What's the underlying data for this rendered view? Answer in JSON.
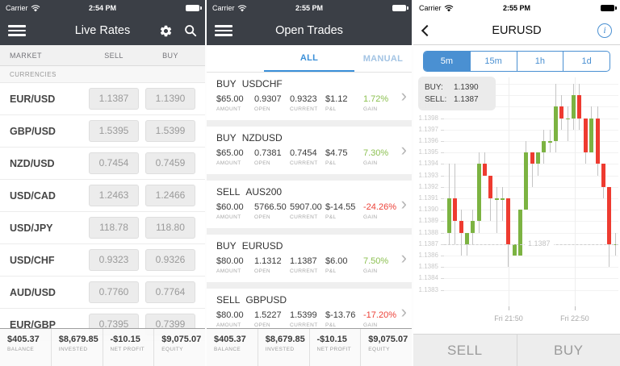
{
  "icons": {
    "chevron_right": "›"
  },
  "colors": {
    "gain": "#8cc051",
    "loss": "#ec4138",
    "accent_blue": "#4a90d2",
    "nav_dark": "#3b3f46"
  },
  "account": {
    "stats": [
      {
        "value": "$405.37",
        "label": "BALANCE"
      },
      {
        "value": "$8,679.85",
        "label": "INVESTED"
      },
      {
        "value": "-$10.15",
        "label": "NET PROFIT"
      },
      {
        "value": "$9,075.07",
        "label": "EQUITY"
      }
    ]
  },
  "live_rates": {
    "carrier": "Carrier",
    "status_time": "2:54 PM",
    "title": "Live Rates",
    "header": {
      "market": "MARKET",
      "sell": "SELL",
      "buy": "BUY"
    },
    "section": "CURRENCIES",
    "rows": [
      {
        "pair": "EUR/USD",
        "sell": "1.1387",
        "buy": "1.1390"
      },
      {
        "pair": "GBP/USD",
        "sell": "1.5395",
        "buy": "1.5399"
      },
      {
        "pair": "NZD/USD",
        "sell": "0.7454",
        "buy": "0.7459"
      },
      {
        "pair": "USD/CAD",
        "sell": "1.2463",
        "buy": "1.2466"
      },
      {
        "pair": "USD/JPY",
        "sell": "118.78",
        "buy": "118.80"
      },
      {
        "pair": "USD/CHF",
        "sell": "0.9323",
        "buy": "0.9326"
      },
      {
        "pair": "AUD/USD",
        "sell": "0.7760",
        "buy": "0.7764"
      },
      {
        "pair": "EUR/GBP",
        "sell": "0.7395",
        "buy": "0.7399"
      }
    ]
  },
  "open_trades": {
    "carrier": "Carrier",
    "status_time": "2:55 PM",
    "title": "Open Trades",
    "tabs": {
      "all": "ALL",
      "manual": "MANUAL"
    },
    "col_labels": {
      "amount": "AMOUNT",
      "open": "OPEN",
      "current": "CURRENT",
      "pl": "P&L",
      "gain": "GAIN"
    },
    "trades": [
      {
        "side": "BUY",
        "symbol": "USDCHF",
        "amount": "$65.00",
        "open": "0.9307",
        "current": "0.9323",
        "pl": "$1.12",
        "gain": "1.72%"
      },
      {
        "side": "BUY",
        "symbol": "NZDUSD",
        "amount": "$65.00",
        "open": "0.7381",
        "current": "0.7454",
        "pl": "$4.75",
        "gain": "7.30%"
      },
      {
        "side": "SELL",
        "symbol": "AUS200",
        "amount": "$60.00",
        "open": "5766.50",
        "current": "5907.00",
        "pl": "$-14.55",
        "gain": "-24.26%"
      },
      {
        "side": "BUY",
        "symbol": "EURUSD",
        "amount": "$80.00",
        "open": "1.1312",
        "current": "1.1387",
        "pl": "$6.00",
        "gain": "7.50%"
      },
      {
        "side": "SELL",
        "symbol": "GBPUSD",
        "amount": "$80.00",
        "open": "1.5227",
        "current": "1.5399",
        "pl": "$-13.76",
        "gain": "-17.20%"
      }
    ]
  },
  "chart_screen": {
    "carrier": "Carrier",
    "status_time": "2:55 PM",
    "title": "EURUSD",
    "timeframes": [
      "5m",
      "15m",
      "1h",
      "1d"
    ],
    "selected_timeframe": "5m",
    "tooltip": {
      "buy_label": "BUY:",
      "buy_value": "1.1390",
      "sell_label": "SELL:",
      "sell_value": "1.1387"
    },
    "sell_button": "SELL",
    "buy_button": "BUY",
    "chart_data": {
      "type": "candlestick",
      "title": "EURUSD 5m",
      "ylim": [
        1.1383,
        1.1401
      ],
      "y_ticks": [
        "1.1401",
        "1.1400",
        "1.1399",
        "1.1398",
        "1.1397",
        "1.1396",
        "1.1395",
        "1.1394",
        "1.1393",
        "1.1392",
        "1.1391",
        "1.1390",
        "1.1389",
        "1.1388",
        "1.1387",
        "1.1386",
        "1.1385",
        "1.1384",
        "1.1383"
      ],
      "x_labels": [
        {
          "label": "Fri 21:50",
          "pos": 0.372
        },
        {
          "label": "Fri 22:50",
          "pos": 0.753
        }
      ],
      "current_price": 1.1387,
      "current_price_label": "1.1387",
      "grid": true,
      "colors": {
        "up": "#7cb342",
        "down": "#ee3b30",
        "wick": "#c4c4c4"
      },
      "candles": [
        [
          1.1388,
          1.1394,
          1.1387,
          1.1391
        ],
        [
          1.1391,
          1.1394,
          1.1387,
          1.1389
        ],
        [
          1.1389,
          1.139,
          1.1386,
          1.1388
        ],
        [
          1.1387,
          1.1388,
          1.1386,
          1.1388
        ],
        [
          1.1388,
          1.139,
          1.1387,
          1.1389
        ],
        [
          1.1389,
          1.1395,
          1.1388,
          1.1394
        ],
        [
          1.1394,
          1.1395,
          1.1393,
          1.1393
        ],
        [
          1.1393,
          1.1393,
          1.1389,
          1.1391
        ],
        [
          1.1391,
          1.1392,
          1.1388,
          1.1391
        ],
        [
          1.1391,
          1.1392,
          1.1389,
          1.1391
        ],
        [
          1.1391,
          1.1391,
          1.1385,
          1.1387
        ],
        [
          1.1386,
          1.1387,
          1.1386,
          1.1387
        ],
        [
          1.1386,
          1.139,
          1.1386,
          1.139
        ],
        [
          1.139,
          1.1396,
          1.139,
          1.1395
        ],
        [
          1.1395,
          1.1395,
          1.1392,
          1.1394
        ],
        [
          1.1394,
          1.1395,
          1.1393,
          1.1395
        ],
        [
          1.1395,
          1.1397,
          1.1394,
          1.1396
        ],
        [
          1.1396,
          1.1397,
          1.1395,
          1.1396
        ],
        [
          1.1396,
          1.1401,
          1.1395,
          1.1399
        ],
        [
          1.1399,
          1.14,
          1.1397,
          1.1398
        ],
        [
          1.1398,
          1.1399,
          1.1396,
          1.1398
        ],
        [
          1.1398,
          1.1401,
          1.1397,
          1.14
        ],
        [
          1.14,
          1.1401,
          1.1397,
          1.1398
        ],
        [
          1.1398,
          1.1398,
          1.1394,
          1.1395
        ],
        [
          1.1395,
          1.1399,
          1.1395,
          1.1398
        ],
        [
          1.1398,
          1.1399,
          1.1393,
          1.1394
        ],
        [
          1.1394,
          1.1394,
          1.1391,
          1.1392
        ],
        [
          1.1392,
          1.1392,
          1.1385,
          1.1387
        ],
        [
          1.1387,
          1.1388,
          1.1386,
          1.1387
        ]
      ]
    }
  }
}
